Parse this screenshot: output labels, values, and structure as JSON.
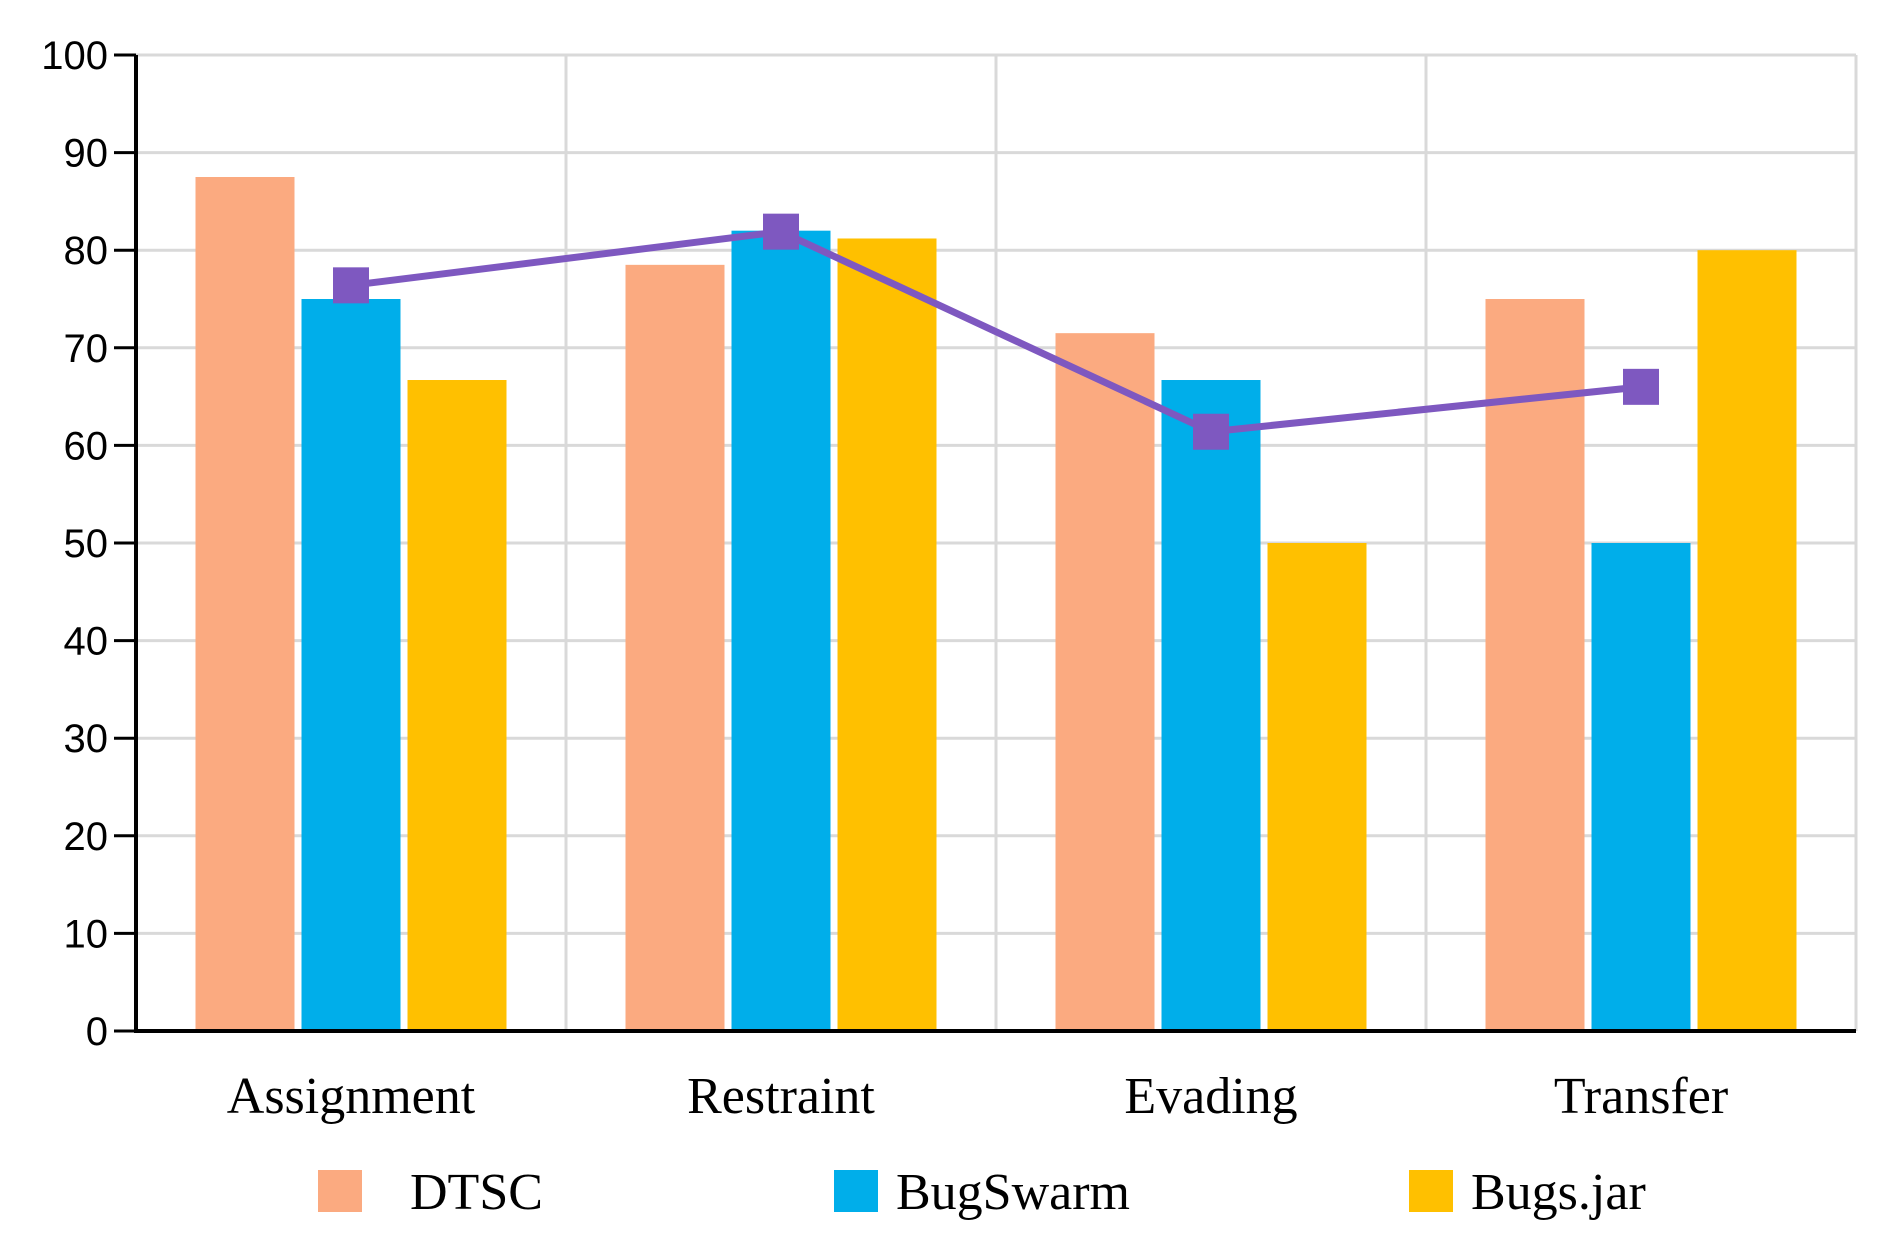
{
  "chart_data": {
    "type": "bar",
    "categories": [
      "Assignment",
      "Restraint",
      "Evading",
      "Transfer"
    ],
    "series": [
      {
        "name": "DTSC",
        "values": [
          87.5,
          78.5,
          71.5,
          75.0
        ],
        "color": "#FBAA80"
      },
      {
        "name": "BugSwarm",
        "values": [
          75.0,
          82.0,
          66.7,
          50.0
        ],
        "color": "#00AEEA"
      },
      {
        "name": "Bugs.jar",
        "values": [
          66.7,
          81.2,
          50.0,
          80.0
        ],
        "color": "#FFC000"
      }
    ],
    "line_series": {
      "name": "",
      "values": [
        76.4,
        81.9,
        61.4,
        66.0
      ],
      "color": "#7E58C0",
      "marker": "square"
    },
    "ylim": [
      0,
      100
    ],
    "yticks": [
      0,
      10,
      20,
      30,
      40,
      50,
      60,
      70,
      80,
      90,
      100
    ],
    "title": "",
    "xlabel": "",
    "ylabel": "",
    "grid": true,
    "legend_position": "bottom"
  }
}
